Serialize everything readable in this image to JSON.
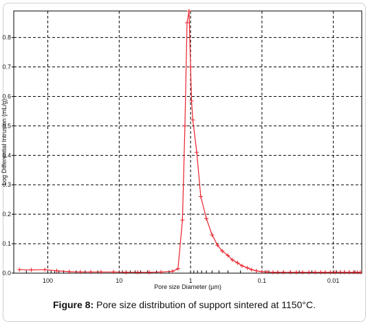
{
  "chart_data": {
    "type": "line",
    "xlabel": "Pore size Diameter (µm)",
    "ylabel": "Log Differential Intrusion (mL/g)",
    "x_scale": "log-reversed",
    "xlim": [
      300,
      0.004
    ],
    "ylim": [
      0,
      0.89
    ],
    "x_ticks": [
      100,
      10,
      1,
      0.1,
      0.01
    ],
    "x_tick_labels": [
      "100",
      "10",
      "1",
      "0.1",
      "0.01"
    ],
    "y_ticks": [
      0,
      0.1,
      0.2,
      0.3,
      0.4,
      0.5,
      0.6,
      0.7,
      0.8
    ],
    "y_tick_labels": [
      "0.0",
      "0.1",
      "0.2",
      "0.3",
      "0.4",
      "0.5",
      "0.6",
      "0.7",
      "0.8"
    ],
    "grid": true,
    "line_color": "#e8202a",
    "marker": "plus",
    "series": [
      {
        "x": [
          250,
          170,
          110,
          75,
          50,
          35,
          25,
          18,
          12,
          8,
          5.5,
          3.8,
          2.6,
          1.8,
          1.5,
          1.3,
          1.2,
          1.12,
          1.05,
          1.0,
          0.97,
          0.93,
          0.82,
          0.72,
          0.6,
          0.5,
          0.42,
          0.36,
          0.3,
          0.26,
          0.22,
          0.19,
          0.16,
          0.14,
          0.12,
          0.1,
          0.085,
          0.07,
          0.06,
          0.05,
          0.04,
          0.033,
          0.027,
          0.022,
          0.018,
          0.015,
          0.013,
          0.011,
          0.0095,
          0.008,
          0.007,
          0.006,
          0.0052,
          0.0046,
          0.0042
        ],
        "y": [
          0.012,
          0.011,
          0.012,
          0.008,
          0.005,
          0.004,
          0.004,
          0.004,
          0.004,
          0.003,
          0.003,
          0.003,
          0.004,
          0.006,
          0.015,
          0.18,
          0.5,
          0.85,
          0.89,
          0.7,
          0.585,
          0.52,
          0.41,
          0.26,
          0.185,
          0.13,
          0.095,
          0.075,
          0.06,
          0.045,
          0.035,
          0.025,
          0.018,
          0.012,
          0.008,
          0.005,
          0.004,
          0.003,
          0.003,
          0.003,
          0.003,
          0.003,
          0.003,
          0.003,
          0.003,
          0.003,
          0.003,
          0.003,
          0.003,
          0.003,
          0.003,
          0.003,
          0.003,
          0.003,
          0.003
        ]
      }
    ]
  },
  "caption": {
    "label": "Figure 8:",
    "text": " Pore size distribution of support sintered at 1150°C."
  }
}
